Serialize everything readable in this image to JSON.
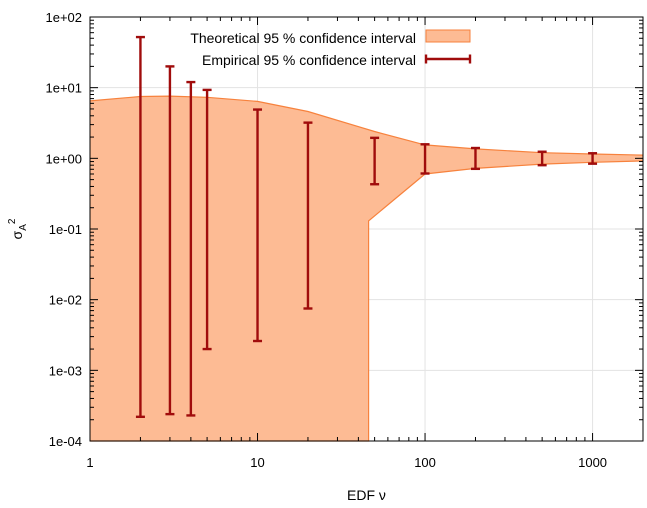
{
  "chart_data": {
    "type": "area",
    "xlabel": "EDF ν",
    "ylabel": "σA2",
    "ylabel_main": "σ",
    "ylabel_sub": "A",
    "ylabel_sup": "2",
    "x_scale": "log",
    "y_scale": "log",
    "xlim": [
      1,
      2000
    ],
    "ylim": [
      0.0001,
      100
    ],
    "x_ticks": [
      {
        "value": 1,
        "label": "1"
      },
      {
        "value": 10,
        "label": "10"
      },
      {
        "value": 100,
        "label": "100"
      },
      {
        "value": 1000,
        "label": "1000"
      }
    ],
    "y_ticks": [
      {
        "value": 0.0001,
        "label": "1e-04"
      },
      {
        "value": 0.001,
        "label": "1e-03"
      },
      {
        "value": 0.01,
        "label": "1e-02"
      },
      {
        "value": 0.1,
        "label": "1e-01"
      },
      {
        "value": 1,
        "label": "1e+00"
      },
      {
        "value": 10,
        "label": "1e+01"
      },
      {
        "value": 100,
        "label": "1e+02"
      }
    ],
    "grid": true,
    "legend_position": "top",
    "series": [
      {
        "name": "Theoretical 95 % confidence interval",
        "kind": "band",
        "color": "#fdbb94",
        "edge_color": "#f7823d",
        "upper": [
          [
            1,
            6.5
          ],
          [
            2,
            7.5
          ],
          [
            3,
            7.6
          ],
          [
            5,
            7.3
          ],
          [
            10,
            6.4
          ],
          [
            20,
            4.6
          ],
          [
            50,
            2.4
          ],
          [
            100,
            1.55
          ],
          [
            200,
            1.36
          ],
          [
            500,
            1.2
          ],
          [
            1000,
            1.15
          ],
          [
            2000,
            1.11
          ]
        ],
        "lower": [
          [
            1,
            0.0001
          ],
          [
            46,
            0.0001
          ],
          [
            46,
            0.13
          ],
          [
            100,
            0.6
          ],
          [
            200,
            0.72
          ],
          [
            500,
            0.83
          ],
          [
            1000,
            0.88
          ],
          [
            2000,
            0.92
          ]
        ]
      },
      {
        "name": "Empirical 95 % confidence interval",
        "kind": "errorbar",
        "color": "#a00c0c",
        "points": [
          {
            "x": 2,
            "low": 0.00022,
            "high": 52
          },
          {
            "x": 3,
            "low": 0.00024,
            "high": 20
          },
          {
            "x": 4,
            "low": 0.00023,
            "high": 12
          },
          {
            "x": 5,
            "low": 0.002,
            "high": 9.3
          },
          {
            "x": 10,
            "low": 0.0026,
            "high": 4.9
          },
          {
            "x": 20,
            "low": 0.0075,
            "high": 3.2
          },
          {
            "x": 50,
            "low": 0.43,
            "high": 1.95
          },
          {
            "x": 100,
            "low": 0.61,
            "high": 1.58
          },
          {
            "x": 200,
            "low": 0.71,
            "high": 1.4
          },
          {
            "x": 500,
            "low": 0.8,
            "high": 1.24
          },
          {
            "x": 1000,
            "low": 0.84,
            "high": 1.18
          }
        ]
      }
    ]
  }
}
